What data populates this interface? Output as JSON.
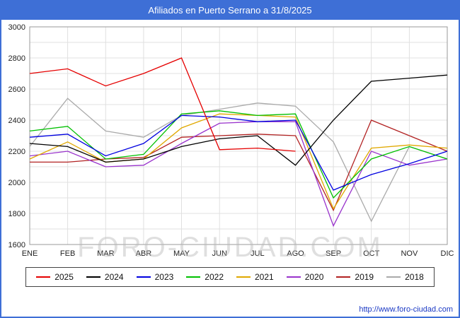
{
  "title": "Afiliados en Puerto Serrano a 31/8/2025",
  "watermark": "FORO-CIUDAD.COM",
  "footer_url": "http://www.foro-ciudad.com",
  "colors": {
    "titlebar": "#3e6fd6",
    "border": "#3e6fd6",
    "grid": "#e0e0e0",
    "axis": "#999999",
    "link": "#1a39c4"
  },
  "chart_data": {
    "type": "line",
    "title": "Afiliados en Puerto Serrano a 31/8/2025",
    "xlabel": "",
    "ylabel": "",
    "ylim": [
      1600,
      3000
    ],
    "ytick_step": 200,
    "minor_grid_step": 100,
    "grid": true,
    "legend_position": "bottom",
    "categories": [
      "ENE",
      "FEB",
      "MAR",
      "ABR",
      "MAY",
      "JUN",
      "JUL",
      "AGO",
      "SEP",
      "OCT",
      "NOV",
      "DIC"
    ],
    "series": [
      {
        "name": "2025",
        "color": "#e50000",
        "values": [
          2700,
          2730,
          2620,
          2700,
          2800,
          2210,
          2220,
          2200,
          null,
          null,
          null,
          null
        ]
      },
      {
        "name": "2024",
        "color": "#000000",
        "values": [
          2250,
          2230,
          2130,
          2150,
          2230,
          2280,
          2300,
          2110,
          2400,
          2650,
          2670,
          2690
        ]
      },
      {
        "name": "2023",
        "color": "#0000e0",
        "values": [
          2290,
          2310,
          2170,
          2250,
          2430,
          2420,
          2390,
          2400,
          1950,
          2050,
          2120,
          2200
        ]
      },
      {
        "name": "2022",
        "color": "#00c000",
        "values": [
          2330,
          2360,
          2150,
          2180,
          2440,
          2460,
          2430,
          2440,
          1900,
          2150,
          2230,
          2150
        ]
      },
      {
        "name": "2021",
        "color": "#e0a800",
        "values": [
          2150,
          2260,
          2130,
          2150,
          2350,
          2440,
          2430,
          2420,
          1830,
          2220,
          2240,
          2220
        ]
      },
      {
        "name": "2020",
        "color": "#9933cc",
        "values": [
          2170,
          2200,
          2100,
          2110,
          2250,
          2380,
          2390,
          2390,
          1720,
          2200,
          2110,
          2150
        ]
      },
      {
        "name": "2019",
        "color": "#b22222",
        "values": [
          2130,
          2130,
          2150,
          2160,
          2290,
          2300,
          2310,
          2300,
          1820,
          2400,
          2300,
          2200
        ]
      },
      {
        "name": "2018",
        "color": "#aaaaaa",
        "values": [
          2230,
          2540,
          2330,
          2290,
          2430,
          2470,
          2510,
          2490,
          2260,
          1750,
          2230,
          2150
        ]
      }
    ]
  }
}
